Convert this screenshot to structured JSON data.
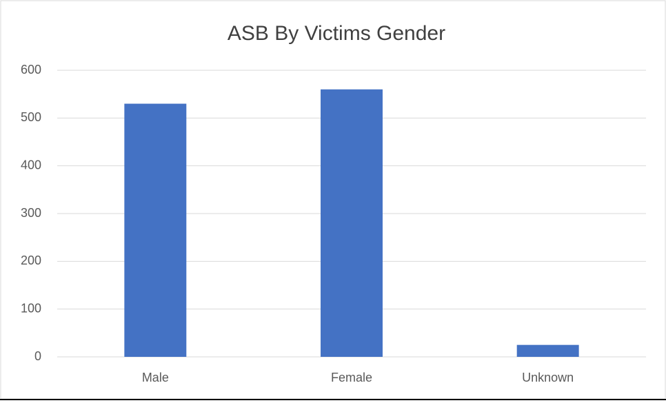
{
  "chart_data": {
    "type": "bar",
    "title": "ASB By Victims Gender",
    "categories": [
      "Male",
      "Female",
      "Unknown"
    ],
    "values": [
      530,
      560,
      25
    ],
    "color": "#4472c4",
    "ylim": [
      0,
      600
    ],
    "yticks": [
      0,
      100,
      200,
      300,
      400,
      500,
      600
    ],
    "grid": true
  }
}
